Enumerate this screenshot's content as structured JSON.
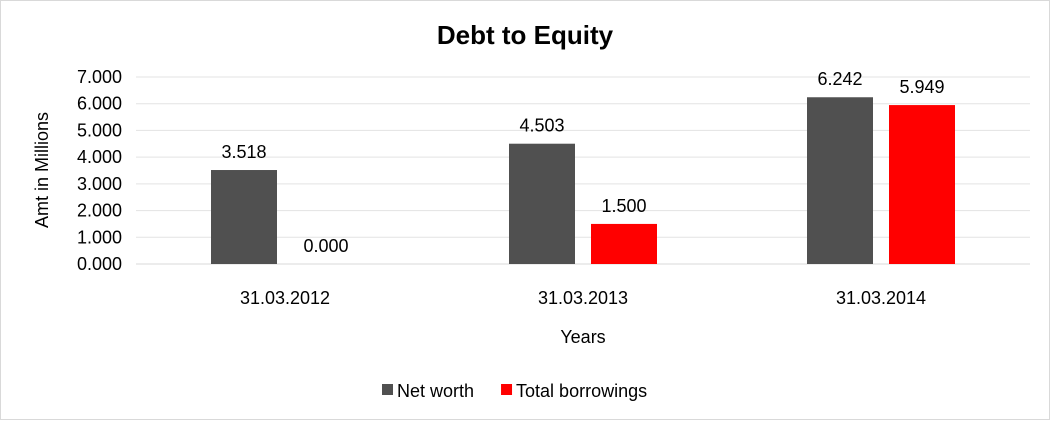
{
  "chart_data": {
    "type": "bar",
    "title": "Debt to Equity",
    "xlabel": "Years",
    "ylabel": "Amt in Millions",
    "categories": [
      "31.03.2012",
      "31.03.2013",
      "31.03.2014"
    ],
    "series": [
      {
        "name": "Net worth",
        "color": "#505050",
        "values": [
          3.518,
          4.503,
          6.242
        ],
        "labels": [
          "3.518",
          "4.503",
          "6.242"
        ]
      },
      {
        "name": "Total borrowings",
        "color": "#ff0000",
        "values": [
          0.0,
          1.5,
          5.949
        ],
        "labels": [
          "0.000",
          "1.500",
          "5.949"
        ]
      }
    ],
    "ylim": [
      0,
      7
    ],
    "yticks": [
      "0.000",
      "1.000",
      "2.000",
      "3.000",
      "4.000",
      "5.000",
      "6.000",
      "7.000"
    ],
    "grid": true,
    "legend": "bottom"
  }
}
